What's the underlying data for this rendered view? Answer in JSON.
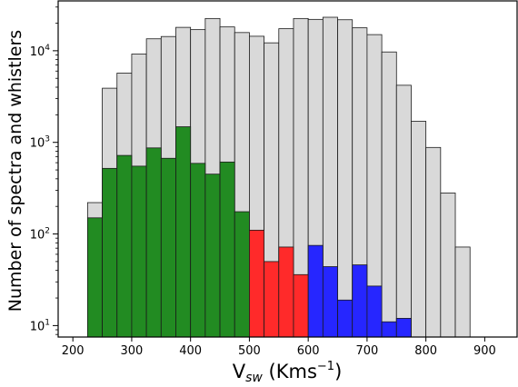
{
  "chart_data": {
    "type": "bar",
    "xscale": "linear",
    "yscale": "log",
    "bin_width": 25,
    "xlim": [
      175,
      955
    ],
    "ylim": [
      7.5,
      35000
    ],
    "grid": false,
    "xlabel": "V",
    "xlabel_sub": "sw",
    "xlabel_unit_prefix": " (Kms",
    "xlabel_unit_sup": "−1",
    "xlabel_unit_suffix": ")",
    "ylabel": "Number of spectra and whistlers",
    "x_ticks": [
      200,
      300,
      400,
      500,
      600,
      700,
      800,
      900
    ],
    "x_tick_labels": [
      "200",
      "300",
      "400",
      "500",
      "600",
      "700",
      "800",
      "900"
    ],
    "y_ticks": [
      10,
      100,
      1000,
      10000
    ],
    "y_tick_labels": [
      {
        "base": "10",
        "exp": "1"
      },
      {
        "base": "10",
        "exp": "2"
      },
      {
        "base": "10",
        "exp": "3"
      },
      {
        "base": "10",
        "exp": "4"
      }
    ],
    "series": [
      {
        "color": "#d9d9d9",
        "bins": [
          {
            "x0": 225,
            "count": 220
          },
          {
            "x0": 250,
            "count": 3900
          },
          {
            "x0": 275,
            "count": 5700
          },
          {
            "x0": 300,
            "count": 9200
          },
          {
            "x0": 325,
            "count": 13500
          },
          {
            "x0": 350,
            "count": 14300
          },
          {
            "x0": 375,
            "count": 18000
          },
          {
            "x0": 400,
            "count": 17000
          },
          {
            "x0": 425,
            "count": 22500
          },
          {
            "x0": 450,
            "count": 18200
          },
          {
            "x0": 475,
            "count": 15800
          },
          {
            "x0": 500,
            "count": 14400
          },
          {
            "x0": 525,
            "count": 12200
          },
          {
            "x0": 550,
            "count": 17400
          },
          {
            "x0": 575,
            "count": 22500
          },
          {
            "x0": 600,
            "count": 22000
          },
          {
            "x0": 625,
            "count": 23200
          },
          {
            "x0": 650,
            "count": 21800
          },
          {
            "x0": 675,
            "count": 17800
          },
          {
            "x0": 700,
            "count": 15000
          },
          {
            "x0": 725,
            "count": 9700
          },
          {
            "x0": 750,
            "count": 4200
          },
          {
            "x0": 775,
            "count": 1700
          },
          {
            "x0": 800,
            "count": 880
          },
          {
            "x0": 825,
            "count": 280
          },
          {
            "x0": 850,
            "count": 72
          }
        ]
      },
      {
        "color": "#228b22",
        "bins": [
          {
            "x0": 225,
            "count": 150
          },
          {
            "x0": 250,
            "count": 520
          },
          {
            "x0": 275,
            "count": 720
          },
          {
            "x0": 300,
            "count": 550
          },
          {
            "x0": 325,
            "count": 870
          },
          {
            "x0": 350,
            "count": 670
          },
          {
            "x0": 375,
            "count": 1480
          },
          {
            "x0": 400,
            "count": 590
          },
          {
            "x0": 425,
            "count": 450
          },
          {
            "x0": 450,
            "count": 610
          },
          {
            "x0": 475,
            "count": 175
          }
        ]
      },
      {
        "color": "#ff2a2a",
        "bins": [
          {
            "x0": 500,
            "count": 110
          },
          {
            "x0": 525,
            "count": 50
          },
          {
            "x0": 550,
            "count": 72
          },
          {
            "x0": 575,
            "count": 36
          }
        ]
      },
      {
        "color": "#2626ff",
        "bins": [
          {
            "x0": 600,
            "count": 75
          },
          {
            "x0": 625,
            "count": 44
          },
          {
            "x0": 650,
            "count": 19
          },
          {
            "x0": 675,
            "count": 46
          },
          {
            "x0": 700,
            "count": 27
          },
          {
            "x0": 725,
            "count": 11
          },
          {
            "x0": 750,
            "count": 12
          }
        ]
      }
    ]
  }
}
